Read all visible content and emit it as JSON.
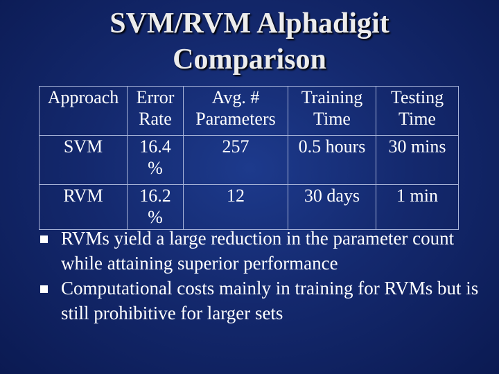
{
  "title": {
    "line1": "SVM/RVM Alphadigit",
    "line2": "Comparison"
  },
  "table": {
    "headers": [
      [
        "Approach"
      ],
      [
        "Error",
        "Rate"
      ],
      [
        "Avg. #",
        "Parameters"
      ],
      [
        "Training",
        "Time"
      ],
      [
        "Testing",
        "Time"
      ]
    ],
    "rows": [
      {
        "approach": "SVM",
        "error": [
          "16.4",
          "%"
        ],
        "params": "257",
        "training": "0.5 hours",
        "testing": "30 mins"
      },
      {
        "approach": "RVM",
        "error": [
          "16.2",
          "%"
        ],
        "params": "12",
        "training": "30 days",
        "testing": "1 min"
      }
    ]
  },
  "bullets": [
    {
      "text": "RVMs yield a large reduction in the parameter count while attaining superior performance"
    },
    {
      "text": "Computational costs mainly in training for RVMs but is still prohibitive for larger sets"
    }
  ],
  "colors": {
    "background": "#14296e",
    "text": "#ffffff",
    "title": "#ececec",
    "table_border": "#a8b4d8"
  },
  "icons": {
    "bullet": "square-bullet-icon"
  }
}
